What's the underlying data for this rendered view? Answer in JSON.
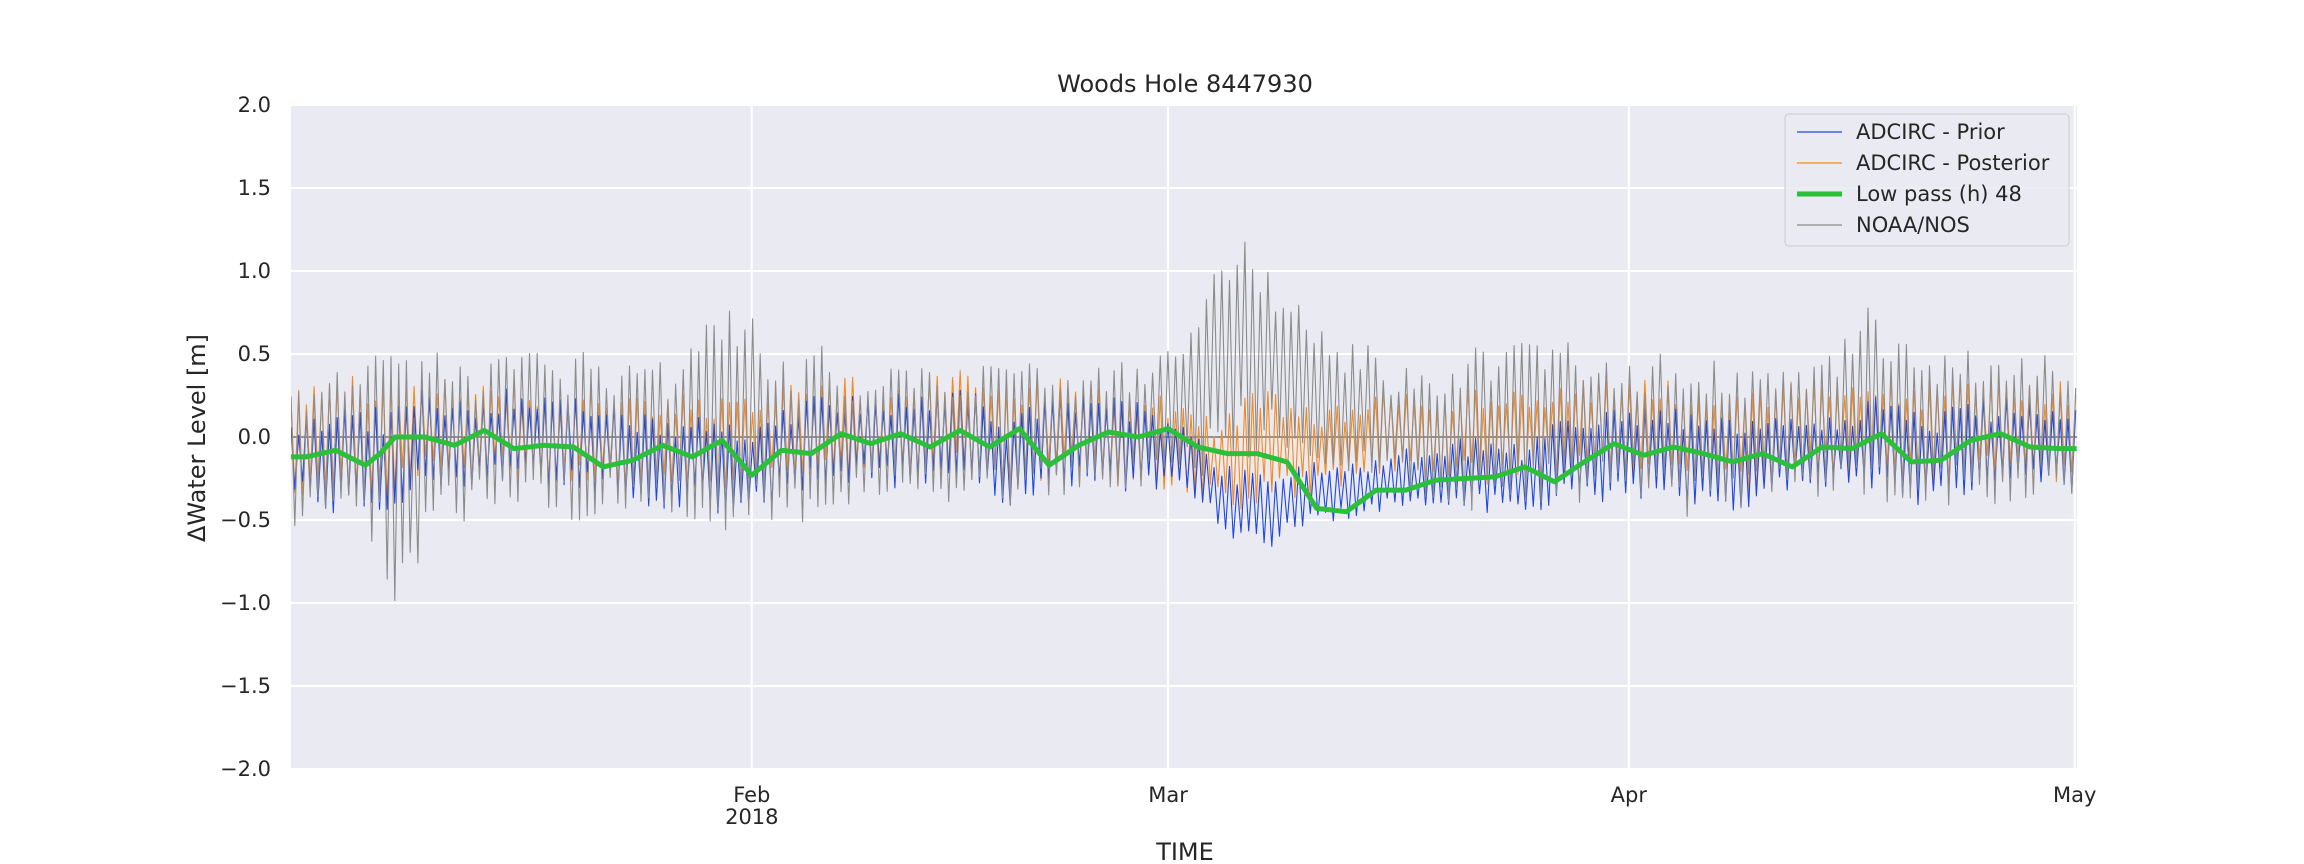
{
  "chart_data": {
    "type": "line",
    "title": "Woods Hole  8447930",
    "xlabel": "TIME",
    "ylabel": "ΔWater Level [m]",
    "ylim": [
      -2.0,
      2.0
    ],
    "xlim": [
      "2018-01-01",
      "2018-05-01"
    ],
    "yticks": [
      -2.0,
      -1.5,
      -1.0,
      -0.5,
      0.0,
      0.5,
      1.0,
      1.5,
      2.0
    ],
    "ytick_labels": [
      "−2.0",
      "−1.5",
      "−1.0",
      "−0.5",
      "0.0",
      "0.5",
      "1.0",
      "1.5",
      "2.0"
    ],
    "xticks": [
      {
        "date": "2018-02-01",
        "label": "Feb",
        "sublabel": "2018"
      },
      {
        "date": "2018-03-01",
        "label": "Mar",
        "sublabel": ""
      },
      {
        "date": "2018-04-01",
        "label": "Apr",
        "sublabel": ""
      },
      {
        "date": "2018-05-01",
        "label": "May",
        "sublabel": ""
      }
    ],
    "grid": true,
    "legend_position": "top-right",
    "zero_line": true,
    "series": [
      {
        "name": "ADCIRC - Prior",
        "color": "#1f48e0",
        "style": "thin",
        "x": [
          "2018-01-01",
          "2018-01-04",
          "2018-01-07",
          "2018-01-10",
          "2018-01-13",
          "2018-01-16",
          "2018-01-19",
          "2018-01-22",
          "2018-01-25",
          "2018-01-28",
          "2018-01-31",
          "2018-02-03",
          "2018-02-06",
          "2018-02-09",
          "2018-02-12",
          "2018-02-15",
          "2018-02-18",
          "2018-02-21",
          "2018-02-24",
          "2018-02-27",
          "2018-03-02",
          "2018-03-04",
          "2018-03-06",
          "2018-03-08",
          "2018-03-10",
          "2018-03-13",
          "2018-03-16",
          "2018-03-19",
          "2018-03-22",
          "2018-03-25",
          "2018-03-28",
          "2018-03-31",
          "2018-04-03",
          "2018-04-06",
          "2018-04-09",
          "2018-04-12",
          "2018-04-15",
          "2018-04-18",
          "2018-04-21",
          "2018-04-24",
          "2018-04-27",
          "2018-04-30",
          "2018-05-02"
        ],
        "center": [
          -0.14,
          -0.12,
          -0.17,
          0.0,
          -0.04,
          0.02,
          -0.05,
          -0.07,
          -0.16,
          -0.14,
          -0.22,
          -0.1,
          -0.02,
          -0.01,
          -0.04,
          0.04,
          -0.15,
          -0.02,
          0.0,
          -0.08,
          -0.1,
          -0.3,
          -0.44,
          -0.46,
          -0.33,
          -0.33,
          -0.26,
          -0.26,
          -0.22,
          -0.27,
          -0.13,
          -0.11,
          -0.08,
          -0.15,
          -0.2,
          -0.08,
          -0.07,
          -0.03,
          -0.14,
          -0.06,
          -0.04,
          -0.06,
          -0.07
        ],
        "amplitude": [
          0.2,
          0.3,
          0.3,
          0.25,
          0.25,
          0.25,
          0.25,
          0.25,
          0.25,
          0.25,
          0.25,
          0.25,
          0.25,
          0.25,
          0.25,
          0.25,
          0.25,
          0.25,
          0.25,
          0.25,
          0.2,
          0.18,
          0.22,
          0.22,
          0.18,
          0.15,
          0.15,
          0.2,
          0.2,
          0.2,
          0.25,
          0.25,
          0.25,
          0.25,
          0.25,
          0.2,
          0.2,
          0.25,
          0.25,
          0.25,
          0.25,
          0.25,
          0.25
        ]
      },
      {
        "name": "ADCIRC - Posterior",
        "color": "#f5891f",
        "style": "thin",
        "x": [
          "2018-01-01",
          "2018-01-04",
          "2018-01-07",
          "2018-01-10",
          "2018-01-13",
          "2018-01-16",
          "2018-01-19",
          "2018-01-22",
          "2018-01-25",
          "2018-01-28",
          "2018-01-31",
          "2018-02-03",
          "2018-02-06",
          "2018-02-09",
          "2018-02-12",
          "2018-02-15",
          "2018-02-18",
          "2018-02-21",
          "2018-02-24",
          "2018-02-27",
          "2018-03-02",
          "2018-03-04",
          "2018-03-06",
          "2018-03-08",
          "2018-03-10",
          "2018-03-13",
          "2018-03-16",
          "2018-03-19",
          "2018-03-22",
          "2018-03-25",
          "2018-03-28",
          "2018-03-31",
          "2018-04-03",
          "2018-04-06",
          "2018-04-09",
          "2018-04-12",
          "2018-04-15",
          "2018-04-18",
          "2018-04-21",
          "2018-04-24",
          "2018-04-27",
          "2018-04-30",
          "2018-05-02"
        ],
        "center": [
          -0.05,
          -0.03,
          -0.05,
          0.05,
          0.02,
          0.05,
          0.0,
          0.0,
          -0.05,
          -0.02,
          -0.1,
          0.0,
          0.05,
          0.05,
          0.02,
          0.08,
          -0.05,
          0.05,
          0.05,
          0.0,
          -0.05,
          -0.15,
          -0.1,
          -0.05,
          -0.1,
          -0.05,
          0.05,
          0.0,
          0.0,
          0.0,
          0.05,
          0.05,
          0.05,
          0.0,
          -0.05,
          0.05,
          0.05,
          0.05,
          0.0,
          0.05,
          0.05,
          0.03,
          0.0
        ],
        "amplitude": [
          0.3,
          0.35,
          0.35,
          0.28,
          0.28,
          0.28,
          0.28,
          0.28,
          0.28,
          0.28,
          0.28,
          0.28,
          0.28,
          0.28,
          0.28,
          0.28,
          0.28,
          0.28,
          0.28,
          0.28,
          0.25,
          0.25,
          0.3,
          0.3,
          0.25,
          0.22,
          0.22,
          0.25,
          0.25,
          0.25,
          0.28,
          0.28,
          0.28,
          0.28,
          0.28,
          0.25,
          0.25,
          0.28,
          0.28,
          0.28,
          0.28,
          0.28,
          0.28
        ]
      },
      {
        "name": "Low pass (h) 48",
        "color": "#2bbf3a",
        "style": "thick",
        "x": [
          "2018-01-01",
          "2018-01-02",
          "2018-01-04",
          "2018-01-06",
          "2018-01-07",
          "2018-01-08",
          "2018-01-10",
          "2018-01-12",
          "2018-01-14",
          "2018-01-16",
          "2018-01-18",
          "2018-01-20",
          "2018-01-22",
          "2018-01-24",
          "2018-01-26",
          "2018-01-28",
          "2018-01-30",
          "2018-02-01",
          "2018-02-03",
          "2018-02-05",
          "2018-02-07",
          "2018-02-09",
          "2018-02-11",
          "2018-02-13",
          "2018-02-15",
          "2018-02-17",
          "2018-02-19",
          "2018-02-21",
          "2018-02-23",
          "2018-02-25",
          "2018-02-27",
          "2018-03-01",
          "2018-03-03",
          "2018-03-05",
          "2018-03-07",
          "2018-03-09",
          "2018-03-11",
          "2018-03-13",
          "2018-03-15",
          "2018-03-17",
          "2018-03-19",
          "2018-03-21",
          "2018-03-23",
          "2018-03-25",
          "2018-03-27",
          "2018-03-29",
          "2018-03-31",
          "2018-04-02",
          "2018-04-04",
          "2018-04-06",
          "2018-04-08",
          "2018-04-10",
          "2018-04-12",
          "2018-04-14",
          "2018-04-16",
          "2018-04-18",
          "2018-04-20",
          "2018-04-22",
          "2018-04-24",
          "2018-04-26",
          "2018-04-28",
          "2018-04-30",
          "2018-05-02"
        ],
        "y": [
          -0.12,
          -0.12,
          -0.08,
          -0.17,
          -0.1,
          0.0,
          0.0,
          -0.05,
          0.04,
          -0.07,
          -0.05,
          -0.06,
          -0.18,
          -0.14,
          -0.05,
          -0.12,
          -0.02,
          -0.23,
          -0.08,
          -0.1,
          0.02,
          -0.04,
          0.02,
          -0.06,
          0.04,
          -0.06,
          0.05,
          -0.17,
          -0.05,
          0.03,
          0.0,
          0.05,
          -0.06,
          -0.1,
          -0.1,
          -0.15,
          -0.43,
          -0.45,
          -0.32,
          -0.32,
          -0.26,
          -0.25,
          -0.24,
          -0.18,
          -0.27,
          -0.15,
          -0.04,
          -0.11,
          -0.06,
          -0.1,
          -0.15,
          -0.1,
          -0.18,
          -0.06,
          -0.07,
          0.02,
          -0.15,
          -0.14,
          -0.02,
          0.02,
          -0.06,
          -0.07,
          -0.07
        ]
      },
      {
        "name": "NOAA/NOS",
        "color": "#8c8c8c",
        "style": "thin",
        "x": [
          "2018-01-01",
          "2018-01-03",
          "2018-01-05",
          "2018-01-07",
          "2018-01-08",
          "2018-01-09",
          "2018-01-11",
          "2018-01-13",
          "2018-01-15",
          "2018-01-17",
          "2018-01-19",
          "2018-01-21",
          "2018-01-23",
          "2018-01-25",
          "2018-01-27",
          "2018-01-29",
          "2018-01-31",
          "2018-02-02",
          "2018-02-04",
          "2018-02-06",
          "2018-02-08",
          "2018-02-10",
          "2018-02-12",
          "2018-02-14",
          "2018-02-16",
          "2018-02-18",
          "2018-02-20",
          "2018-02-22",
          "2018-02-24",
          "2018-02-26",
          "2018-02-28",
          "2018-03-02",
          "2018-03-04",
          "2018-03-06",
          "2018-03-08",
          "2018-03-10",
          "2018-03-12",
          "2018-03-14",
          "2018-03-16",
          "2018-03-18",
          "2018-03-20",
          "2018-03-22",
          "2018-03-24",
          "2018-03-26",
          "2018-03-28",
          "2018-03-30",
          "2018-04-01",
          "2018-04-03",
          "2018-04-05",
          "2018-04-07",
          "2018-04-09",
          "2018-04-11",
          "2018-04-13",
          "2018-04-15",
          "2018-04-17",
          "2018-04-19",
          "2018-04-21",
          "2018-04-23",
          "2018-04-25",
          "2018-04-27",
          "2018-04-29",
          "2018-05-02"
        ],
        "center": [
          -0.1,
          -0.05,
          -0.1,
          0.0,
          -0.2,
          -0.25,
          0.0,
          -0.05,
          0.05,
          0.0,
          0.0,
          0.0,
          0.0,
          0.0,
          0.0,
          0.1,
          0.15,
          0.0,
          -0.05,
          0.05,
          0.0,
          0.0,
          0.05,
          0.0,
          0.05,
          0.0,
          0.05,
          0.0,
          0.05,
          0.05,
          0.1,
          0.2,
          0.45,
          0.55,
          0.5,
          0.3,
          0.15,
          0.2,
          0.05,
          0.05,
          0.0,
          0.05,
          0.05,
          0.1,
          0.1,
          0.05,
          0.05,
          0.05,
          0.0,
          0.0,
          0.0,
          0.05,
          0.05,
          0.1,
          0.15,
          0.15,
          0.05,
          0.1,
          0.05,
          0.1,
          0.05,
          0.05
        ],
        "amplitude": [
          0.4,
          0.4,
          0.45,
          0.65,
          0.7,
          0.6,
          0.45,
          0.4,
          0.4,
          0.45,
          0.45,
          0.45,
          0.4,
          0.4,
          0.4,
          0.55,
          0.7,
          0.5,
          0.45,
          0.45,
          0.35,
          0.35,
          0.35,
          0.35,
          0.35,
          0.4,
          0.4,
          0.35,
          0.35,
          0.35,
          0.35,
          0.4,
          0.6,
          0.6,
          0.5,
          0.45,
          0.35,
          0.35,
          0.3,
          0.35,
          0.35,
          0.45,
          0.45,
          0.45,
          0.45,
          0.35,
          0.35,
          0.4,
          0.45,
          0.4,
          0.4,
          0.35,
          0.4,
          0.45,
          0.55,
          0.5,
          0.4,
          0.45,
          0.4,
          0.45,
          0.4,
          0.35
        ]
      }
    ],
    "series_note_period_hours": 12.42
  }
}
